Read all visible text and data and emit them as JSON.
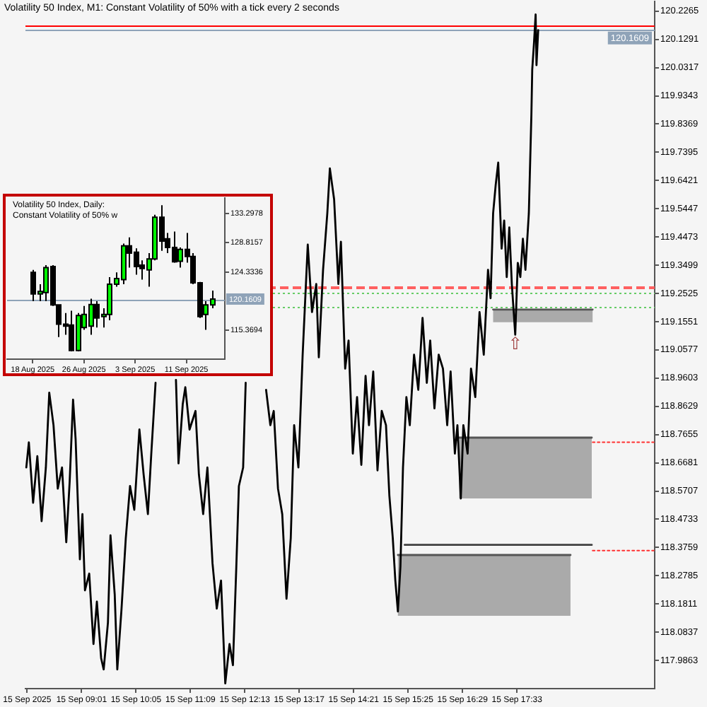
{
  "chart_data": [
    {
      "type": "line",
      "title": "Volatility 50 Index, M1:  Constant Volatility of 50% with a tick every 2 seconds",
      "series": [
        {
          "type": "line",
          "color": "#000000",
          "x": [
            "2025-09-15T07:56",
            "2025-09-15T07:59",
            "2025-09-15T08:04",
            "2025-09-15T08:09",
            "2025-09-15T08:14",
            "2025-09-15T08:19",
            "2025-09-15T08:23",
            "2025-09-15T08:28",
            "2025-09-15T08:33",
            "2025-09-15T08:38",
            "2025-09-15T08:43",
            "2025-09-15T08:47",
            "2025-09-15T08:51",
            "2025-09-15T08:54",
            "2025-09-15T08:59",
            "2025-09-15T09:02",
            "2025-09-15T09:05",
            "2025-09-15T09:10",
            "2025-09-15T09:15",
            "2025-09-15T09:19",
            "2025-09-15T09:24",
            "2025-09-15T09:27",
            "2025-09-15T09:32",
            "2025-09-15T09:35",
            "2025-09-15T09:40",
            "2025-09-15T09:43",
            "2025-09-15T09:48",
            "2025-09-15T09:53",
            "2025-09-15T09:58",
            "2025-09-15T10:03",
            "2025-09-15T10:09",
            "2025-09-15T10:14",
            "2025-09-15T10:19",
            "2025-09-15T10:23",
            "2025-09-15T10:28",
            "2025-09-15T10:41",
            "2025-09-15T10:52",
            "2025-09-15T10:55",
            "2025-09-15T11:00",
            "2025-09-15T11:03",
            "2025-09-15T11:08",
            "2025-09-15T11:15",
            "2025-09-15T11:19",
            "2025-09-15T11:24",
            "2025-09-15T11:29",
            "2025-09-15T11:35",
            "2025-09-15T11:40",
            "2025-09-15T11:45",
            "2025-09-15T11:50",
            "2025-09-15T11:55",
            "2025-09-15T11:59",
            "2025-09-15T12:03",
            "2025-09-15T12:06",
            "2025-09-15T12:11",
            "2025-09-15T12:14",
            "2025-09-15T12:27",
            "2025-09-15T12:38",
            "2025-09-15T12:43",
            "2025-09-15T12:47",
            "2025-09-15T12:52",
            "2025-09-15T12:57",
            "2025-09-15T13:02",
            "2025-09-15T13:07",
            "2025-09-15T13:11",
            "2025-09-15T13:16",
            "2025-09-15T13:21",
            "2025-09-15T13:27",
            "2025-09-15T13:32",
            "2025-09-15T13:37",
            "2025-09-15T13:40",
            "2025-09-15T13:45",
            "2025-09-15T13:50",
            "2025-09-15T13:53",
            "2025-09-15T13:58",
            "2025-09-15T14:03",
            "2025-09-15T14:06",
            "2025-09-15T14:11",
            "2025-09-15T14:15",
            "2025-09-15T14:20",
            "2025-09-15T14:25",
            "2025-09-15T14:30",
            "2025-09-15T14:35",
            "2025-09-15T14:39",
            "2025-09-15T14:44",
            "2025-09-15T14:49",
            "2025-09-15T14:54",
            "2025-09-15T14:59",
            "2025-09-15T15:03",
            "2025-09-15T15:07",
            "2025-09-15T15:10",
            "2025-09-15T15:13",
            "2025-09-15T15:16",
            "2025-09-15T15:19",
            "2025-09-15T15:23",
            "2025-09-15T15:27",
            "2025-09-15T15:32",
            "2025-09-15T15:37",
            "2025-09-15T15:42",
            "2025-09-15T15:47",
            "2025-09-15T15:51",
            "2025-09-15T15:56",
            "2025-09-15T16:01",
            "2025-09-15T16:06",
            "2025-09-15T16:11",
            "2025-09-15T16:15",
            "2025-09-15T16:20",
            "2025-09-15T16:23",
            "2025-09-15T16:27",
            "2025-09-15T16:30",
            "2025-09-15T16:35",
            "2025-09-15T16:39",
            "2025-09-15T16:44",
            "2025-09-15T16:49",
            "2025-09-15T16:54",
            "2025-09-15T16:59",
            "2025-09-15T17:02",
            "2025-09-15T17:05",
            "2025-09-15T17:08",
            "2025-09-15T17:11",
            "2025-09-15T17:15",
            "2025-09-15T17:18",
            "2025-09-15T17:21",
            "2025-09-15T17:24",
            "2025-09-15T17:27",
            "2025-09-15T17:31",
            "2025-09-15T17:34",
            "2025-09-15T17:37",
            "2025-09-15T17:40",
            "2025-09-15T17:43",
            "2025-09-15T17:47",
            "2025-09-15T17:50",
            "2025-09-15T17:51",
            "2025-09-15T17:53",
            "2025-09-15T17:55",
            "2025-09-15T17:56",
            "2025-09-15T17:58"
          ],
          "values": [
            118.652,
            118.739,
            118.53,
            118.691,
            118.467,
            118.652,
            118.91,
            118.798,
            118.579,
            118.652,
            118.394,
            118.603,
            118.886,
            118.749,
            118.335,
            118.491,
            118.228,
            118.286,
            118.043,
            118.189,
            117.994,
            117.955,
            118.116,
            118.418,
            118.213,
            117.955,
            118.165,
            118.408,
            118.588,
            118.506,
            118.783,
            118.627,
            118.491,
            118.7,
            118.944,
            null,
            118.954,
            118.666,
            118.871,
            118.929,
            118.783,
            118.847,
            118.627,
            118.491,
            118.652,
            118.321,
            118.165,
            118.262,
            117.907,
            118.043,
            117.97,
            118.311,
            118.588,
            118.652,
            118.944,
            null,
            118.92,
            118.798,
            118.847,
            118.579,
            118.491,
            118.199,
            118.408,
            118.798,
            118.652,
            119.041,
            119.421,
            119.188,
            119.285,
            119.032,
            119.334,
            119.529,
            119.684,
            119.577,
            119.285,
            119.431,
            118.993,
            119.09,
            118.7,
            118.895,
            118.661,
            118.968,
            118.798,
            118.983,
            118.642,
            118.847,
            118.798,
            118.554,
            118.408,
            118.262,
            118.155,
            118.311,
            118.652,
            118.895,
            118.798,
            119.041,
            118.92,
            119.168,
            118.944,
            119.09,
            118.856,
            119.041,
            118.993,
            118.798,
            118.983,
            118.7,
            118.798,
            118.545,
            118.798,
            118.7,
            118.993,
            118.895,
            119.188,
            119.041,
            119.334,
            119.236,
            119.529,
            119.626,
            119.704,
            119.407,
            119.504,
            119.309,
            119.48,
            119.285,
            119.11,
            119.358,
            119.309,
            119.441,
            119.334,
            119.529,
            119.869,
            120.025,
            120.113,
            120.215,
            120.04,
            120.161
          ]
        },
        {
          "type": "line",
          "color": "#555555",
          "x": [
            "2025-09-15T17:05",
            "2025-09-15T19:02"
          ],
          "values": [
            119.197,
            119.197
          ],
          "lower": [
            119.153,
            119.153
          ],
          "upper": [
            119.197,
            119.197
          ]
        },
        {
          "type": "line",
          "color": "#555555",
          "x": [
            "2025-09-15T16:25",
            "2025-09-15T19:01"
          ],
          "values": [
            118.755,
            118.755
          ],
          "lower": [
            118.545,
            118.545
          ],
          "upper": [
            118.755,
            118.755
          ]
        },
        {
          "type": "line",
          "color": "#555555",
          "x": [
            "2025-09-15T15:13",
            "2025-09-15T18:36"
          ],
          "values": [
            118.35,
            118.35
          ],
          "lower": [
            118.14,
            118.14
          ],
          "upper": [
            118.35,
            118.35
          ]
        },
        {
          "type": "line",
          "color": "#404040",
          "x": [
            "2025-09-15T15:21",
            "2025-09-15T19:01"
          ],
          "values": [
            118.385,
            118.385
          ]
        },
        {
          "type": "line",
          "color": "#ff3030",
          "line_style": "dotted",
          "x": [
            "2025-09-15T19:02",
            "2025-09-15T20:14"
          ],
          "values": [
            118.739,
            118.739
          ]
        },
        {
          "type": "line",
          "color": "#ff3030",
          "line_style": "dotted",
          "x": [
            "2025-09-15T19:02",
            "2025-09-15T20:14"
          ],
          "values": [
            118.365,
            118.365
          ]
        }
      ],
      "xlim": [
        "2025-09-15T07:55",
        "2025-09-15T20:15"
      ],
      "ylim": [
        117.889,
        120.26
      ],
      "xticks": [
        {
          "value": "2025-09-15T07:57",
          "label": "15 Sep 2025"
        },
        {
          "value": "2025-09-15T09:01",
          "label": "15 Sep 09:01"
        },
        {
          "value": "2025-09-15T10:05",
          "label": "15 Sep 10:05"
        },
        {
          "value": "2025-09-15T11:09",
          "label": "15 Sep 11:09"
        },
        {
          "value": "2025-09-15T12:13",
          "label": "15 Sep 12:13"
        },
        {
          "value": "2025-09-15T13:17",
          "label": "15 Sep 13:17"
        },
        {
          "value": "2025-09-15T14:21",
          "label": "15 Sep 14:21"
        },
        {
          "value": "2025-09-15T15:25",
          "label": "15 Sep 15:25"
        },
        {
          "value": "2025-09-15T16:29",
          "label": "15 Sep 16:29"
        },
        {
          "value": "2025-09-15T17:33",
          "label": "15 Sep 17:33"
        }
      ],
      "yticks": [
        120.2265,
        120.1291,
        120.0317,
        119.9343,
        119.8369,
        119.7395,
        119.6421,
        119.5447,
        119.4473,
        119.3499,
        119.2525,
        119.1551,
        119.0577,
        118.9603,
        118.8629,
        118.7655,
        118.6681,
        118.5707,
        118.4733,
        118.3759,
        118.2785,
        118.1811,
        118.0837,
        117.9863
      ],
      "ref_lines": [
        {
          "axis": "y",
          "value": 120.175,
          "color": "#ff0000"
        },
        {
          "axis": "y",
          "value": 120.1609,
          "label": "120.1609",
          "color": "#8fa3b8"
        },
        {
          "axis": "y",
          "value": 119.275,
          "color": "#ff6060",
          "line_style": "dashed"
        },
        {
          "axis": "y",
          "value": 119.256,
          "color": "#66cc66",
          "line_style": "dotted"
        },
        {
          "axis": "y",
          "value": 119.207,
          "color": "#66cc66",
          "line_style": "dotted"
        }
      ],
      "annotations": [
        {
          "text": "⇧",
          "x": "2025-09-15T17:31",
          "y": 119.11
        }
      ]
    },
    {
      "type": "candlestick",
      "title": "Volatility 50 Index, Daily:  Constant Volatility of 50% w",
      "x": [
        "2025-08-18",
        "2025-08-19",
        "2025-08-20",
        "2025-08-21",
        "2025-08-22",
        "2025-08-23",
        "2025-08-24",
        "2025-08-25",
        "2025-08-26",
        "2025-08-27",
        "2025-08-28",
        "2025-08-29",
        "2025-08-30",
        "2025-08-31",
        "2025-09-01",
        "2025-09-02",
        "2025-09-03",
        "2025-09-04",
        "2025-09-05",
        "2025-09-06",
        "2025-09-07",
        "2025-09-08",
        "2025-09-09",
        "2025-09-10",
        "2025-09-11",
        "2025-09-12",
        "2025-09-13",
        "2025-09-14",
        "2025-09-15"
      ],
      "ohlc": [
        [
          124.27,
          124.63,
          119.85,
          120.96
        ],
        [
          120.96,
          122.43,
          119.85,
          121.33
        ],
        [
          121.18,
          125.37,
          119.85,
          125.0
        ],
        [
          125.15,
          125.37,
          119.12,
          119.27
        ],
        [
          119.27,
          119.27,
          114.34,
          116.33
        ],
        [
          116.33,
          118.02,
          114.71,
          116.03
        ],
        [
          116.18,
          118.39,
          112.14,
          112.29
        ],
        [
          112.29,
          118.02,
          112.14,
          117.65
        ],
        [
          115.81,
          119.12,
          115.45,
          117.8
        ],
        [
          116.03,
          120.22,
          114.71,
          119.34
        ],
        [
          119.34,
          119.85,
          115.81,
          117.28
        ],
        [
          117.5,
          118.75,
          115.81,
          117.8
        ],
        [
          117.8,
          123.53,
          116.92,
          122.43
        ],
        [
          122.43,
          124.27,
          122.06,
          123.31
        ],
        [
          123.16,
          128.68,
          122.43,
          128.31
        ],
        [
          128.31,
          129.63,
          125.0,
          127.2
        ],
        [
          127.35,
          127.94,
          123.9,
          125.15
        ],
        [
          125.37,
          126.1,
          123.16,
          124.85
        ],
        [
          124.63,
          127.2,
          122.06,
          126.32
        ],
        [
          126.32,
          133.08,
          126.1,
          132.72
        ],
        [
          132.72,
          134.56,
          127.57,
          129.04
        ],
        [
          129.41,
          130.29,
          127.2,
          128.09
        ],
        [
          128.09,
          130.51,
          125.74,
          125.88
        ],
        [
          125.96,
          128.09,
          125.0,
          127.79
        ],
        [
          127.79,
          130.29,
          125.74,
          126.69
        ],
        [
          126.69,
          127.2,
          122.43,
          122.65
        ],
        [
          122.65,
          122.79,
          117.28,
          117.5
        ],
        [
          117.8,
          119.85,
          115.45,
          119.27
        ],
        [
          119.27,
          121.47,
          118.75,
          120.16
        ]
      ],
      "colors": [
        "#000000",
        "#00ff00",
        "#00ff00",
        "#000000",
        "#000000",
        "#000000",
        "#000000",
        "#00ff00",
        "#00ff00",
        "#00ff00",
        "#000000",
        "#00ff00",
        "#00ff00",
        "#00ff00",
        "#00ff00",
        "#000000",
        "#000000",
        "#000000",
        "#00ff00",
        "#00ff00",
        "#000000",
        "#000000",
        "#000000",
        "#00ff00",
        "#000000",
        "#000000",
        "#000000",
        "#00ff00",
        "#00ff00"
      ],
      "xlim": [
        "2025-08-14",
        "2025-09-17"
      ],
      "ylim": [
        110.96,
        135.66
      ],
      "xticks": [
        {
          "value": "2025-08-18",
          "label": "18 Aug 2025"
        },
        {
          "value": "2025-08-26",
          "label": "26 Aug 2025"
        },
        {
          "value": "2025-09-03",
          "label": "3 Sep 2025"
        },
        {
          "value": "2025-09-11",
          "label": "11 Sep 2025"
        }
      ],
      "yticks": [
        133.2978,
        128.8157,
        124.3336,
        115.3694
      ],
      "ref_lines": [
        {
          "axis": "y",
          "value": 120.1609,
          "label": "120.1609",
          "color": "#8fa3b8"
        }
      ]
    }
  ]
}
